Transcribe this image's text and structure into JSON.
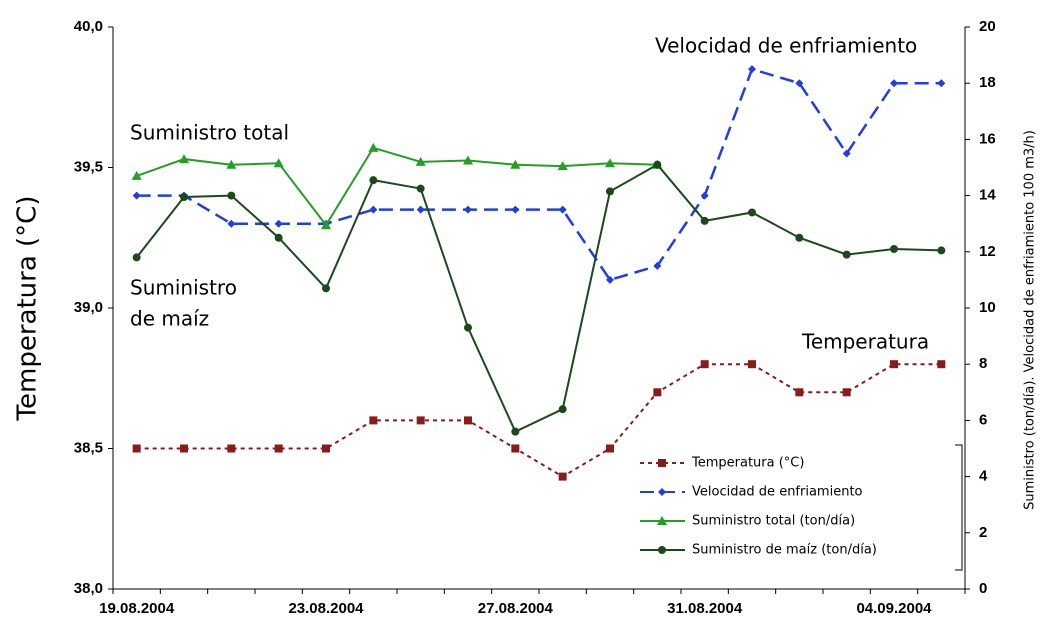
{
  "chart_data": {
    "type": "line",
    "ylabel": "Temperatura (°C)",
    "y2label": "Suministro (ton/día). Velocidad de enfriamiento 100 m3/h)",
    "categories": [
      "19.08.2004",
      null,
      null,
      null,
      "23.08.2004",
      null,
      null,
      null,
      "27.08.2004",
      null,
      null,
      null,
      "31.08.2004",
      null,
      null,
      null,
      "04.09.2004",
      null
    ],
    "ylim": [
      38,
      40
    ],
    "yticks": [
      {
        "value": 38,
        "label": "38,0"
      },
      {
        "value": 38.5,
        "label": "38,5"
      },
      {
        "value": 39,
        "label": "39,0"
      },
      {
        "value": 39.5,
        "label": "39,5"
      },
      {
        "value": 40,
        "label": "40,0"
      }
    ],
    "y2lim": [
      0,
      20
    ],
    "y2ticks": [
      0,
      2,
      4,
      6,
      8,
      10,
      12,
      14,
      16,
      18,
      20
    ],
    "legend": "lower right",
    "series": [
      {
        "name": "Temperatura (°C)",
        "color": "#8b1a1a",
        "style": "dotted",
        "marker": "square",
        "values": [
          38.5,
          38.5,
          38.5,
          38.5,
          38.5,
          38.6,
          38.6,
          38.6,
          38.5,
          38.4,
          38.5,
          38.7,
          38.8,
          38.8,
          38.7,
          38.7,
          38.8,
          38.8
        ]
      },
      {
        "name": "Velocidad de enfriamiento",
        "color": "#1f3fe0",
        "style": "dashed",
        "marker": "diamond",
        "axis": "y2",
        "values": [
          14,
          14,
          13,
          13,
          13,
          13.5,
          13.5,
          13.5,
          13.5,
          13.5,
          11,
          11.5,
          14,
          18.5,
          18,
          15.5,
          18,
          18
        ]
      },
      {
        "name": "Suministro total (ton/día)",
        "color": "#22a022",
        "style": "solid",
        "marker": "triangle",
        "axis": "y2",
        "values": [
          14.7,
          15.3,
          15.1,
          15.15,
          12.95,
          15.7,
          15.2,
          15.25,
          15.1,
          15.05,
          15.15,
          15.1,
          null,
          null,
          null,
          null,
          null,
          null
        ]
      },
      {
        "name": "Suministro de maíz (ton/día)",
        "color": "#1a4a1a",
        "style": "solid",
        "marker": "circle",
        "axis": "y2",
        "values": [
          11.8,
          13.95,
          14,
          12.5,
          10.7,
          14.55,
          14.25,
          9.3,
          5.6,
          6.4,
          14.15,
          15.1,
          13.1,
          13.4,
          12.5,
          11.9,
          12.1,
          12.05
        ]
      }
    ],
    "annotations": [
      "Suministro total",
      "Velocidad de enfriamiento",
      "Suministro",
      "de maíz",
      "Temperatura"
    ]
  }
}
